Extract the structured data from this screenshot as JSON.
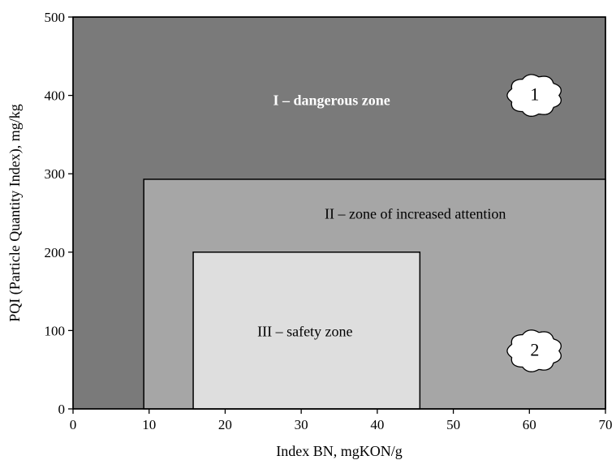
{
  "chart_data": {
    "type": "area",
    "title": "",
    "xlabel": "Index BN, mgKON/g",
    "ylabel": "PQI (Particle Quantity Index), mg/kg",
    "xlim": [
      0,
      70
    ],
    "ylim": [
      0,
      500
    ],
    "x_ticks": [
      0,
      10,
      20,
      30,
      40,
      50,
      60,
      70
    ],
    "y_ticks": [
      0,
      100,
      200,
      300,
      400,
      500
    ],
    "grid": false,
    "legend": "none",
    "zones": [
      {
        "name": "I – dangerous zone",
        "x": [
          0,
          70
        ],
        "y": [
          0,
          500
        ],
        "color": "#7a7a7a",
        "text_color": "#ffffff",
        "bold": true,
        "label_at": [
          34,
          392
        ]
      },
      {
        "name": "II – zone of increased attention",
        "x": [
          9.3,
          70
        ],
        "y": [
          0,
          293
        ],
        "color": "#a6a6a6",
        "text_color": "#000000",
        "bold": false,
        "label_at": [
          45,
          247
        ]
      },
      {
        "name": "III – safety zone",
        "x": [
          15.8,
          45.6
        ],
        "y": [
          0,
          200
        ],
        "color": "#dedede",
        "text_color": "#000000",
        "bold": false,
        "label_at": [
          30.5,
          97
        ]
      }
    ],
    "markers": [
      {
        "label": "1",
        "x": 60.7,
        "y": 400
      },
      {
        "label": "2",
        "x": 60.7,
        "y": 74
      }
    ]
  }
}
